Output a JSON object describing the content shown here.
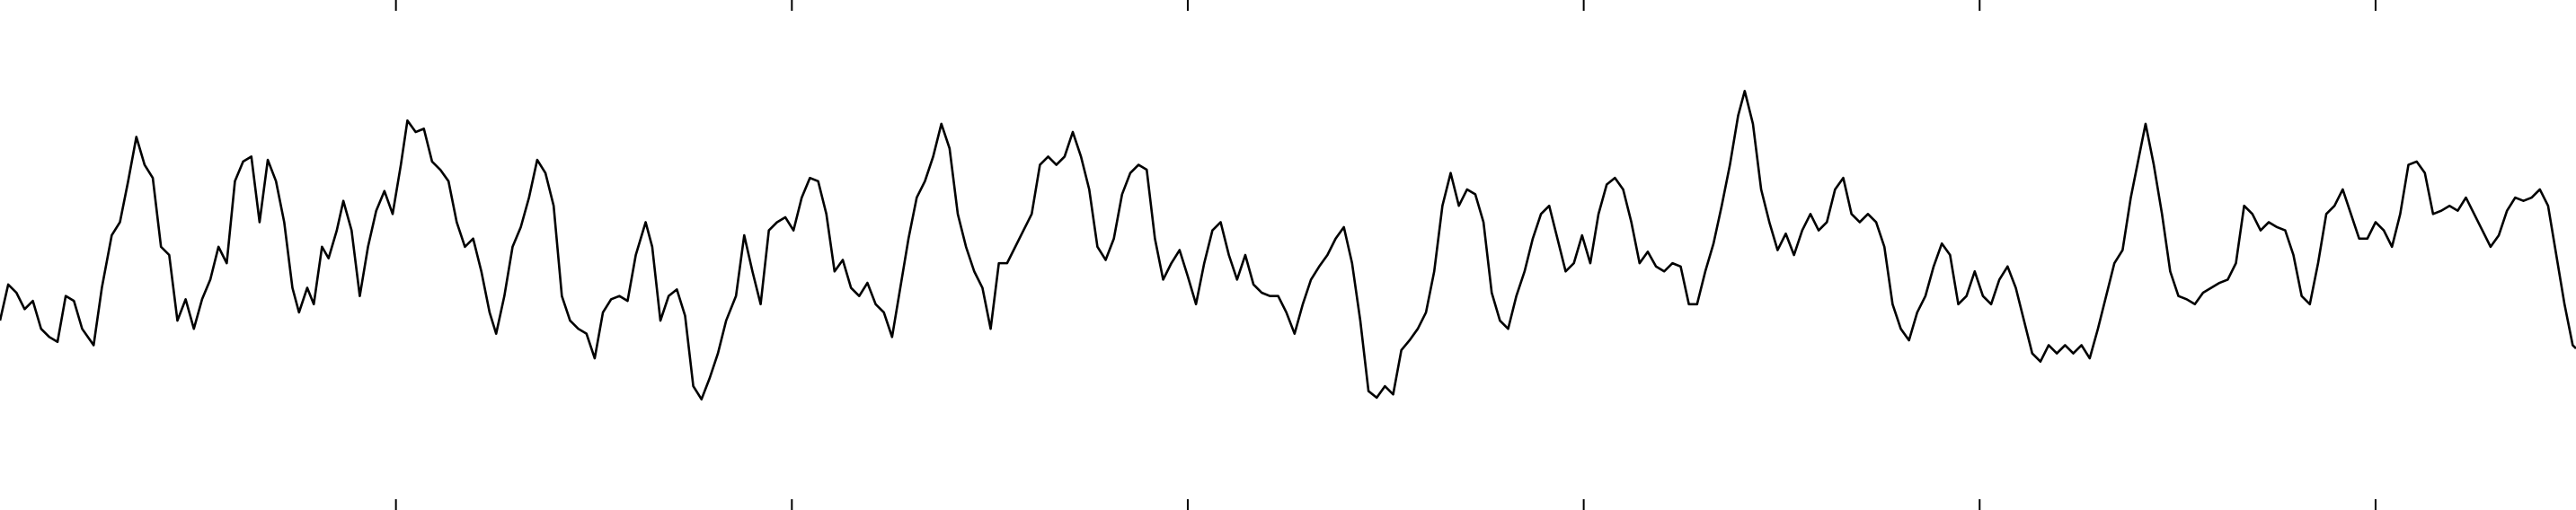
{
  "chart_data": {
    "type": "line",
    "color": "#000000",
    "xlim": [
      0,
      1568
    ],
    "xticks": [
      241,
      482,
      723,
      964,
      1205,
      1446
    ],
    "ylim": [
      -155.5,
      155.5
    ],
    "x": [
      0,
      5,
      10,
      15,
      20,
      25,
      30,
      35,
      40,
      45,
      50,
      57,
      62,
      68,
      73,
      78,
      83,
      88,
      93,
      98,
      103,
      108,
      113,
      118,
      123,
      128,
      133,
      138,
      143,
      148,
      153,
      158,
      163,
      168,
      173,
      178,
      182,
      187,
      191,
      196,
      200,
      205,
      209,
      214,
      219,
      224,
      229,
      234,
      239,
      244,
      248,
      253,
      258,
      263,
      268,
      273,
      278,
      283,
      288,
      293,
      298,
      302,
      307,
      312,
      317,
      322,
      327,
      332,
      337,
      342,
      347,
      352,
      357,
      362,
      367,
      372,
      377,
      382,
      387,
      393,
      397,
      402,
      407,
      412,
      417,
      422,
      427,
      432,
      437,
      442,
      448,
      453,
      458,
      463,
      468,
      473,
      478,
      483,
      488,
      493,
      498,
      503,
      508,
      513,
      518,
      523,
      528,
      533,
      538,
      543,
      548,
      553,
      558,
      563,
      568,
      573,
      578,
      583,
      588,
      593,
      598,
      603,
      608,
      613,
      618,
      623,
      628,
      633,
      638,
      643,
      648,
      653,
      658,
      663,
      668,
      673,
      678,
      683,
      688,
      693,
      698,
      703,
      708,
      713,
      718,
      723,
      728,
      733,
      738,
      743,
      748,
      753,
      758,
      763,
      768,
      773,
      778,
      783,
      788,
      793,
      798,
      803,
      808,
      813,
      818,
      823,
      828,
      833,
      838,
      843,
      848,
      853,
      858,
      863,
      868,
      873,
      878,
      883,
      888,
      893,
      898,
      903,
      908,
      913,
      918,
      923,
      928,
      933,
      938,
      943,
      948,
      953,
      958,
      963,
      968,
      973,
      978,
      983,
      988,
      993,
      998,
      1003,
      1008,
      1013,
      1018,
      1023,
      1028,
      1033,
      1038,
      1043,
      1048,
      1053,
      1058,
      1062,
      1067,
      1072,
      1077,
      1082,
      1087,
      1092,
      1097,
      1102,
      1107,
      1112,
      1117,
      1122,
      1127,
      1132,
      1137,
      1142,
      1147,
      1152,
      1157,
      1162,
      1167,
      1172,
      1177,
      1182,
      1187,
      1192,
      1197,
      1202,
      1207,
      1212,
      1217,
      1222,
      1227,
      1232,
      1237,
      1242,
      1247,
      1252,
      1257,
      1262,
      1267,
      1272,
      1277,
      1282,
      1287,
      1292,
      1297,
      1302,
      1306,
      1311,
      1316,
      1321,
      1326,
      1331,
      1336,
      1341,
      1346,
      1351,
      1356,
      1361,
      1366,
      1371,
      1376,
      1381,
      1386,
      1391,
      1396,
      1401,
      1406,
      1411,
      1416,
      1421,
      1426,
      1431,
      1436,
      1441,
      1446,
      1451,
      1456,
      1461,
      1466,
      1471,
      1476,
      1481,
      1486,
      1491,
      1496,
      1501,
      1506,
      1511,
      1516,
      1521,
      1526,
      1531,
      1536,
      1541,
      1546,
      1551,
      1556,
      1561,
      1566,
      1568
    ],
    "values": [
      -40,
      -18,
      -23,
      -33,
      -28,
      -45,
      -50,
      -53,
      -25,
      -28,
      -45,
      -55,
      -20,
      12,
      20,
      45,
      72,
      55,
      47,
      5,
      0,
      -40,
      -27,
      -45,
      -27,
      -15,
      5,
      -5,
      45,
      57,
      60,
      20,
      58,
      45,
      20,
      -20,
      -35,
      -20,
      -30,
      5,
      -2,
      15,
      33,
      15,
      -25,
      5,
      27,
      39,
      25,
      55,
      82,
      75,
      77,
      57,
      52,
      45,
      20,
      5,
      10,
      -10,
      -35,
      -48,
      -25,
      5,
      17,
      35,
      58,
      50,
      30,
      -25,
      -40,
      -45,
      -48,
      -63,
      -35,
      -27,
      -25,
      -28,
      0,
      20,
      5,
      -40,
      -25,
      -21,
      -37,
      -80,
      -88,
      -75,
      -60,
      -40,
      -25,
      12,
      -10,
      -30,
      15,
      20,
      23,
      15,
      35,
      47,
      45,
      25,
      -10,
      -3,
      -20,
      -25,
      -17,
      -30,
      -35,
      -50,
      -20,
      10,
      35,
      45,
      60,
      80,
      65,
      25,
      5,
      -10,
      -20,
      -45,
      -5,
      -5,
      5,
      15,
      25,
      55,
      60,
      55,
      60,
      75,
      60,
      40,
      5,
      -3,
      10,
      37,
      50,
      55,
      52,
      10,
      -15,
      -5,
      3,
      -13,
      -30,
      -5,
      15,
      20,
      0,
      -15,
      0,
      -18,
      -23,
      -25,
      -25,
      -35,
      -48,
      -30,
      -15,
      -7,
      0,
      10,
      17,
      -5,
      -40,
      -83,
      -87,
      -80,
      -85,
      -58,
      -52,
      -45,
      -35,
      -10,
      30,
      50,
      30,
      40,
      37,
      20,
      -23,
      -40,
      -45,
      -25,
      -10,
      10,
      25,
      30,
      10,
      -10,
      -5,
      12,
      -5,
      25,
      43,
      47,
      40,
      20,
      -5,
      2,
      -7,
      -10,
      -5,
      -7,
      -30,
      -30,
      -10,
      7,
      30,
      55,
      85,
      100,
      80,
      40,
      20,
      3,
      13,
      0,
      15,
      25,
      15,
      20,
      40,
      47,
      25,
      20,
      25,
      20,
      5,
      -30,
      -45,
      -52,
      -35,
      -25,
      -7,
      7,
      0,
      -30,
      -25,
      -10,
      -25,
      -30,
      -15,
      -7,
      -20,
      -40,
      -60,
      -65,
      -55,
      -60,
      -55,
      -60,
      -55,
      -63,
      -45,
      -25,
      -5,
      3,
      35,
      60,
      80,
      55,
      25,
      -10,
      -25,
      -27,
      -30,
      -23,
      -20,
      -17,
      -15,
      -5,
      30,
      25,
      15,
      20,
      17,
      15,
      0,
      -25,
      -30,
      -5,
      25,
      30,
      40,
      25,
      10,
      10,
      20,
      15,
      5,
      25,
      55,
      57,
      50,
      25,
      27,
      30,
      27,
      35,
      25,
      15,
      5,
      12,
      27,
      35,
      33,
      35,
      40,
      30,
      0,
      -30,
      -55,
      -57
    ]
  }
}
